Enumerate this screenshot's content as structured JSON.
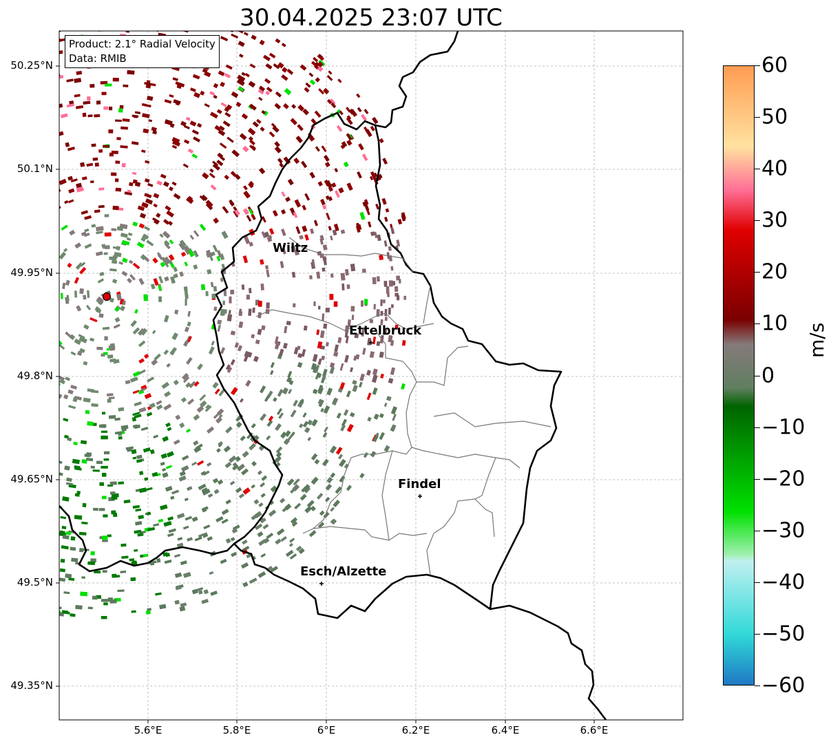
{
  "map": {
    "title": "30.04.2025 23:07 UTC",
    "info": {
      "product": "Product: 2.1° Radial Velocity",
      "data_source": "Data: RMIB"
    },
    "lat_labels": [
      "50.25°N",
      "50.1°N",
      "49.95°N",
      "49.8°N",
      "49.65°N",
      "49.5°N",
      "49.35°N"
    ],
    "lon_labels": [
      "5.6°E",
      "5.8°E",
      "6°E",
      "6.2°E",
      "6.4°E",
      "6.6°E"
    ],
    "cities": [
      {
        "name": "Wiltz"
      },
      {
        "name": "Ettelbruck"
      },
      {
        "name": "Findel"
      },
      {
        "name": "Esch/Alzette"
      }
    ],
    "radar_site": "radar",
    "colorbar": {
      "unit": "m/s",
      "min": -60,
      "max": 60,
      "tick_labels": [
        "60",
        "50",
        "40",
        "30",
        "20",
        "10",
        "0",
        "−10",
        "−20",
        "−30",
        "−40",
        "−50",
        "−60"
      ],
      "colors": {
        "outbound_strong": "#ff9c52",
        "outbound_pink": "#ff6f96",
        "outbound_red": "#e00000",
        "outbound_dark": "#7a0000",
        "near_zero": "#857a7a",
        "inbound_dark": "#006400",
        "inbound_green": "#00e000",
        "inbound_cyan": "#30d8d8",
        "inbound_blue": "#1f78c4"
      }
    }
  }
}
